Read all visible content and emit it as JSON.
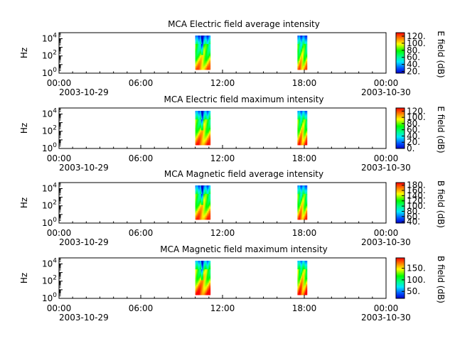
{
  "chart_data": [
    {
      "type": "heatmap",
      "title": "MCA  Electric field average intensity",
      "ylabel": "Hz",
      "colorbar_label": "E field (dB)",
      "colorbar_ticks": [
        "20.",
        "40.",
        "60.",
        "80.",
        "100.",
        "120."
      ],
      "colorbar_range": [
        15,
        130
      ],
      "y_scale": "log",
      "y_ticks": [
        {
          "base": "10",
          "exp": "0"
        },
        {
          "base": "10",
          "exp": "2"
        },
        {
          "base": "10",
          "exp": "4"
        }
      ],
      "x_ticks": [
        "00:00",
        "06:00",
        "12:00",
        "18:00",
        "00:00"
      ],
      "x_dates": [
        "2003-10-29",
        "2003-10-30"
      ],
      "x_range_hours": [
        0,
        24
      ],
      "data_segments": [
        {
          "start_hour": 10.0,
          "end_hour": 11.1
        },
        {
          "start_hour": 17.5,
          "end_hour": 18.2
        }
      ]
    },
    {
      "type": "heatmap",
      "title": "MCA  Electric field maximum intensity",
      "ylabel": "Hz",
      "colorbar_label": "E field (dB)",
      "colorbar_ticks": [
        "0.",
        "20.",
        "40.",
        "60.",
        "80.",
        "100.",
        "120."
      ],
      "colorbar_range": [
        0,
        130
      ],
      "y_scale": "log",
      "y_ticks": [
        {
          "base": "10",
          "exp": "0"
        },
        {
          "base": "10",
          "exp": "2"
        },
        {
          "base": "10",
          "exp": "4"
        }
      ],
      "x_ticks": [
        "00:00",
        "06:00",
        "12:00",
        "18:00",
        "00:00"
      ],
      "x_dates": [
        "2003-10-29",
        "2003-10-30"
      ],
      "x_range_hours": [
        0,
        24
      ],
      "data_segments": [
        {
          "start_hour": 10.0,
          "end_hour": 11.1
        },
        {
          "start_hour": 17.5,
          "end_hour": 18.2
        }
      ]
    },
    {
      "type": "heatmap",
      "title": "MCA  Magnetic field average intensity",
      "ylabel": "Hz",
      "colorbar_label": "B field (dB)",
      "colorbar_ticks": [
        "40.",
        "60.",
        "80.",
        "100.",
        "120.",
        "140.",
        "160.",
        "180."
      ],
      "colorbar_range": [
        35,
        190
      ],
      "y_scale": "log",
      "y_ticks": [
        {
          "base": "10",
          "exp": "0"
        },
        {
          "base": "10",
          "exp": "2"
        },
        {
          "base": "10",
          "exp": "4"
        }
      ],
      "x_ticks": [
        "00:00",
        "06:00",
        "12:00",
        "18:00",
        "00:00"
      ],
      "x_dates": [
        "2003-10-29",
        "2003-10-30"
      ],
      "x_range_hours": [
        0,
        24
      ],
      "data_segments": [
        {
          "start_hour": 10.0,
          "end_hour": 11.1
        },
        {
          "start_hour": 17.5,
          "end_hour": 18.2
        }
      ]
    },
    {
      "type": "heatmap",
      "title": "MCA  Magnetic field maximum intensity",
      "ylabel": "Hz",
      "colorbar_label": "B field (dB)",
      "colorbar_ticks": [
        "50.",
        "100.",
        "150."
      ],
      "colorbar_range": [
        20,
        195
      ],
      "y_scale": "log",
      "y_ticks": [
        {
          "base": "10",
          "exp": "0"
        },
        {
          "base": "10",
          "exp": "2"
        },
        {
          "base": "10",
          "exp": "4"
        }
      ],
      "x_ticks": [
        "00:00",
        "06:00",
        "12:00",
        "18:00",
        "00:00"
      ],
      "x_dates": [
        "2003-10-29",
        "2003-10-30"
      ],
      "x_range_hours": [
        0,
        24
      ],
      "data_segments": [
        {
          "start_hour": 10.0,
          "end_hour": 11.1
        },
        {
          "start_hour": 17.5,
          "end_hour": 18.2
        }
      ]
    }
  ]
}
